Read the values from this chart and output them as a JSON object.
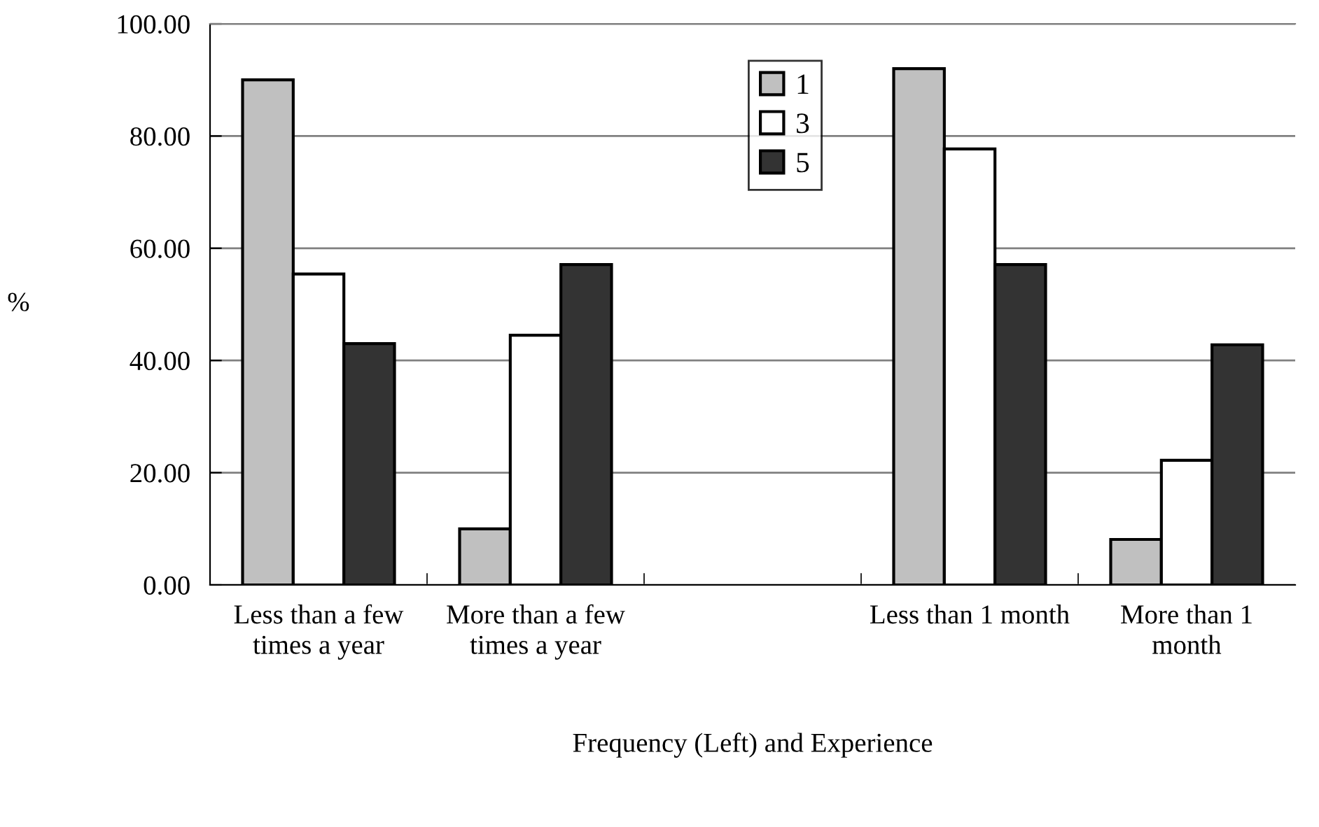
{
  "chart_data": {
    "type": "bar",
    "xlabel": "Frequency (Left) and Experience",
    "ylabel": "%",
    "categories": [
      "Less than a few times a year",
      "More than a few times a year",
      null,
      "Less than 1 month",
      "More than 1 month"
    ],
    "series": [
      {
        "name": "1",
        "color": "#c0c0c0",
        "values": [
          90,
          10,
          null,
          92,
          8.1
        ]
      },
      {
        "name": "3",
        "color": "#ffffff",
        "values": [
          55.4,
          44.5,
          null,
          77.7,
          22.2
        ]
      },
      {
        "name": "5",
        "color": "#333333",
        "values": [
          43,
          57.1,
          null,
          57.1,
          42.8
        ]
      }
    ],
    "ylim": [
      0,
      100
    ],
    "yticks": [
      {
        "value": 0,
        "label": "0.00"
      },
      {
        "value": 20,
        "label": "20.00"
      },
      {
        "value": 40,
        "label": "40.00"
      },
      {
        "value": 60,
        "label": "60.00"
      },
      {
        "value": 80,
        "label": "80.00"
      },
      {
        "value": 100,
        "label": "100.00"
      }
    ],
    "grid": "y",
    "legend": "top"
  }
}
